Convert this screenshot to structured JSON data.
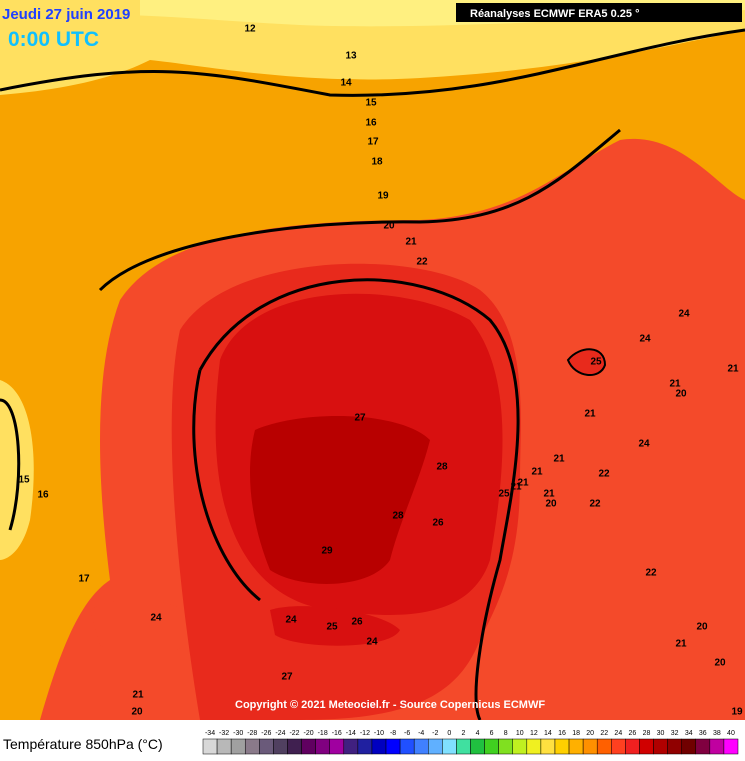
{
  "header": {
    "date": "Jeudi 27 juin 2019",
    "time": "0:00 UTC",
    "source": "Réanalyses ECMWF ERA5 0.25 °"
  },
  "map": {
    "contour_labels": [
      12,
      13,
      14,
      15,
      16,
      17,
      18,
      19,
      20,
      21,
      22,
      24,
      24,
      25,
      21,
      20,
      21,
      21,
      27,
      24,
      21,
      28,
      21,
      22,
      25,
      21,
      21,
      21,
      20,
      22,
      28,
      26,
      15,
      16,
      29,
      22,
      17,
      24,
      24,
      25,
      26,
      24,
      20,
      21,
      20,
      27,
      21,
      20,
      19
    ],
    "copyright": "Copyright © 2021 Meteociel.fr - Source Copernicus ECMWF"
  },
  "legend": {
    "label": "Température 850hPa (°C)",
    "ticks": [
      -34,
      -32,
      -30,
      -28,
      -26,
      -24,
      -22,
      -20,
      -18,
      -16,
      -14,
      -12,
      -10,
      -8,
      -6,
      -4,
      -2,
      0,
      2,
      4,
      6,
      8,
      10,
      12,
      14,
      16,
      18,
      20,
      22,
      24,
      26,
      28,
      30,
      32,
      34,
      36,
      38,
      40
    ],
    "colors": [
      "#d8d8d8",
      "#b8b8b8",
      "#a0a0a0",
      "#8a7a8a",
      "#6a5a7a",
      "#504060",
      "#402050",
      "#600060",
      "#800080",
      "#a000a0",
      "#402080",
      "#2020a0",
      "#0000c0",
      "#0000ff",
      "#2050ff",
      "#4080ff",
      "#60b0ff",
      "#80e0ff",
      "#40e0a0",
      "#20c040",
      "#40d020",
      "#80e020",
      "#c0f020",
      "#f0f020",
      "#ffe040",
      "#ffd000",
      "#ffb000",
      "#ff9000",
      "#ff6000",
      "#ff4020",
      "#f02020",
      "#d00000",
      "#b00000",
      "#900000",
      "#700000",
      "#800040",
      "#c000a0",
      "#ff00ff"
    ]
  }
}
